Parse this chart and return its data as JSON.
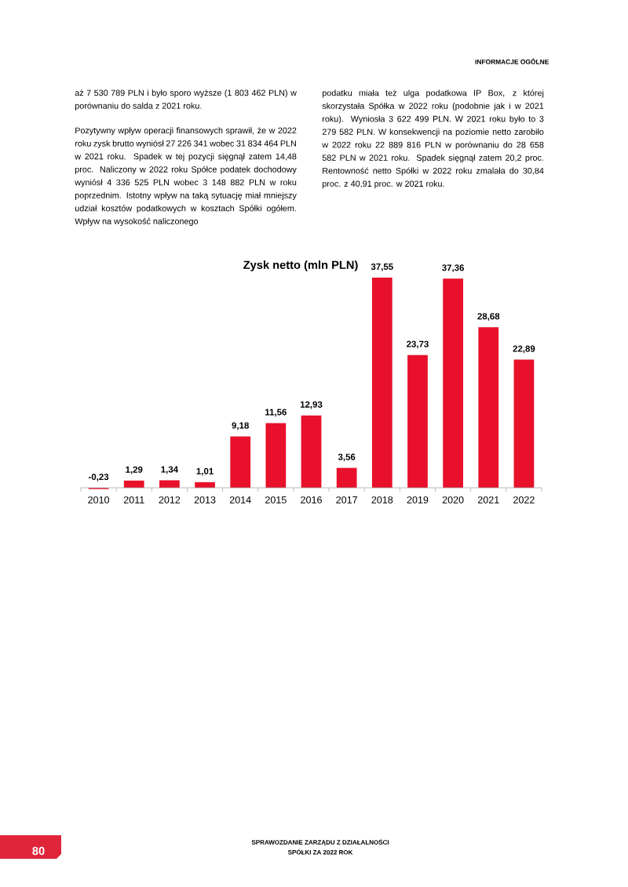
{
  "chart_data": {
    "type": "bar",
    "title": "Zysk netto (mln PLN)",
    "categories": [
      "2010",
      "2011",
      "2012",
      "2013",
      "2014",
      "2015",
      "2016",
      "2017",
      "2018",
      "2019",
      "2020",
      "2021",
      "2022"
    ],
    "values": [
      -0.23,
      1.29,
      1.34,
      1.01,
      9.18,
      11.56,
      12.93,
      3.56,
      37.55,
      23.73,
      37.36,
      28.68,
      22.89
    ],
    "value_labels": [
      "-0,23",
      "1,29",
      "1,34",
      "1,01",
      "9,18",
      "11,56",
      "12,93",
      "3,56",
      "37,55",
      "23,73",
      "37,36",
      "28,68",
      "22,89"
    ],
    "color": "#e8102a",
    "annotations": [
      "INFORMACJE OGÓLNE",
      "aż 7 530 789 PLN i było sporo wyższe (1 803 462 PLN) w porównaniu do salda z 2021 roku.",
      "Pozytywny wpływ operacji finansowych sprawił, że w 2022 roku zysk brutto wyniósł 27 226 341 wobec 31 834 464 PLN w 2021 roku. Spadek w tej pozycji sięgnął zatem 14,48 proc. Naliczony w 2022 roku Spółce podatek dochodowy wyniósł 4 336 525 PLN wobec 3 148 882 PLN w roku poprzednim. Istotny wpływ na taką sytuację miał mniejszy udział kosztów podatkowych w kosztach Spółki ogółem. Wpływ na wysokość naliczonego",
      "podatku miała też ulga podatkowa IP Box, z której skorzystała Spółka w 2022 roku (podobnie jak i w 2021 roku). Wyniosła 3 622 499 PLN. W 2021 roku było to 3 279 582 PLN. W konsekwencji na poziomie netto zarobiło w 2022 roku 22 889 816 PLN w porównaniu do 28 658 582 PLN w 2021 roku. Spadek sięgnął zatem 20,2 proc. Rentowność netto Spółki w 2022 roku zmalała do 30,84 proc. z 40,91 proc. w 2021 roku.",
      "SPRAWOZDANIE ZARZĄDU Z DZIAŁALNOŚCI",
      "SPÓŁKI ZA 2022 ROK",
      "80"
    ]
  }
}
